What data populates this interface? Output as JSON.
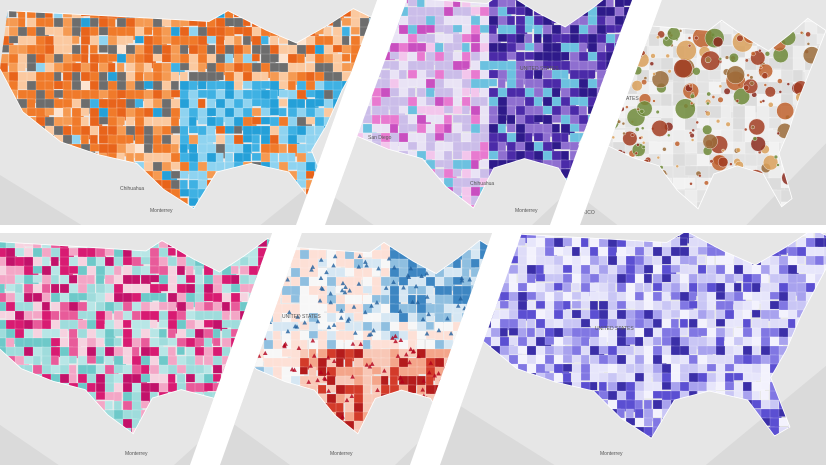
{
  "panels": [
    {
      "labels": [
        "Monterrey",
        "Chihuahua"
      ]
    },
    {
      "labels": [
        "San Diego",
        "Chihuahua",
        "Monterrey",
        "UNITED STATES"
      ]
    },
    {
      "labels": [
        "MEXICO",
        "UNITED STATES"
      ]
    },
    {
      "labels": [
        "Monterrey"
      ]
    },
    {
      "labels": [
        "UNITED STATES",
        "Monterrey"
      ]
    },
    {
      "labels": [
        "UNITED STATES",
        "Monterrey"
      ]
    }
  ]
}
